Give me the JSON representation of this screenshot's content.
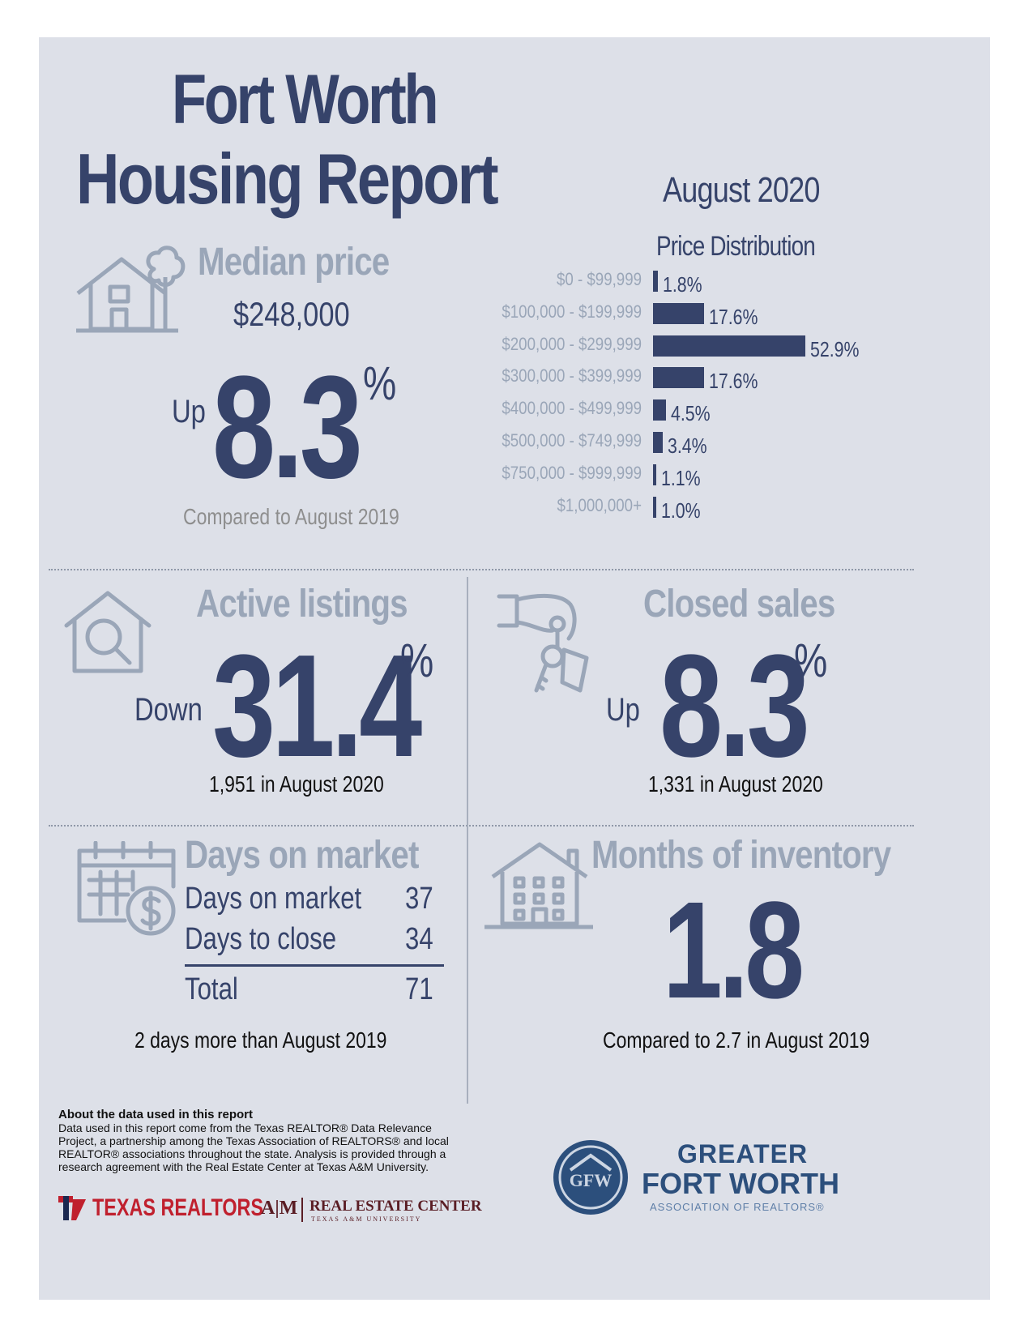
{
  "title_line1": "Fort Worth",
  "title_line2": "Housing Report",
  "period": "August 2020",
  "median": {
    "heading": "Median price",
    "price": "$248,000",
    "direction": "Up",
    "change": "8.3",
    "pct": "%",
    "note": "Compared to August 2019"
  },
  "chart_data": {
    "type": "bar",
    "title": "Price Distribution",
    "orientation": "horizontal",
    "categories": [
      "$0 - $99,999",
      "$100,000 - $199,999",
      "$200,000 - $299,999",
      "$300,000 - $399,999",
      "$400,000 - $499,999",
      "$500,000 - $749,999",
      "$750,000 - $999,999",
      "$1,000,000+"
    ],
    "values": [
      1.8,
      17.6,
      52.9,
      17.6,
      4.5,
      3.4,
      1.1,
      1.0
    ],
    "value_labels": [
      "1.8%",
      "17.6%",
      "52.9%",
      "17.6%",
      "4.5%",
      "3.4%",
      "1.1%",
      "1.0%"
    ],
    "color": "#36436a"
  },
  "active": {
    "heading": "Active listings",
    "direction": "Down",
    "change": "31.4",
    "pct": "%",
    "note": "1,951 in August 2020"
  },
  "closed": {
    "heading": "Closed sales",
    "direction": "Up",
    "change": "8.3",
    "pct": "%",
    "note": "1,331 in August 2020"
  },
  "dom": {
    "heading": "Days on market",
    "rows": [
      {
        "label": "Days on market",
        "value": "37"
      },
      {
        "label": "Days to close",
        "value": "34"
      }
    ],
    "total_label": "Total",
    "total_value": "71",
    "note": "2 days more than August 2019"
  },
  "inventory": {
    "heading": "Months of inventory",
    "value": "1.8",
    "note": "Compared to 2.7 in August 2019"
  },
  "about": {
    "heading": "About the data used in this report",
    "body": "Data used in this report come from the Texas REALTOR® Data Relevance Project, a partnership among the Texas Association of REALTORS® and local REALTOR® associations throughout the state. Analysis is provided through a research agreement with the Real Estate Center at Texas A&M University."
  },
  "logos": {
    "texas_realtors": "TEXAS REALTORS",
    "tamu_mark": "A|M",
    "rec_name": "REAL ESTATE CENTER",
    "rec_sub": "TEXAS A&M UNIVERSITY",
    "gfw_monogram": "GFW",
    "gfw_line1": "GREATER",
    "gfw_line2": "FORT WORTH",
    "gfw_line3": "ASSOCIATION OF REALTORS®"
  },
  "colors": {
    "navy": "#36436a",
    "gray": "#9aa6b8",
    "background": "#dde0e8",
    "red": "#c0202e"
  }
}
